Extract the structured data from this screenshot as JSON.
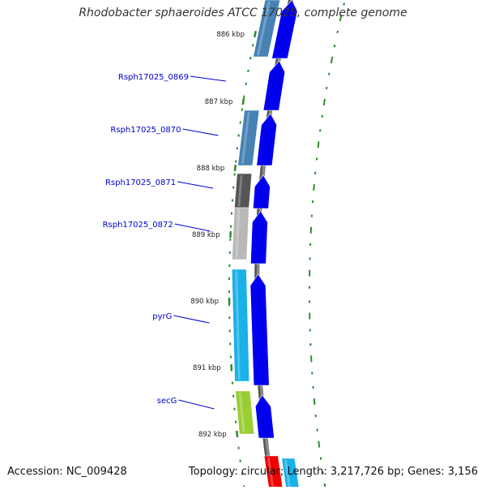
{
  "title": "Rhodobacter sphaeroides ATCC 17025, complete genome",
  "footer": {
    "accession": "Accession: NC_009428",
    "stats": "Topology: circular; Length: 3,217,726 bp; Genes: 3,156"
  },
  "colors": {
    "backbone": "#8c8c8c",
    "tick": "#2e8b2e",
    "label": "#0000cc",
    "forward_arrow": "#0000ee"
  },
  "ticks": [
    {
      "label": "886 kbp"
    },
    {
      "label": "887 kbp"
    },
    {
      "label": "888 kbp"
    },
    {
      "label": "889 kbp"
    },
    {
      "label": "890 kbp"
    },
    {
      "label": "891 kbp"
    },
    {
      "label": "892 kbp"
    }
  ],
  "genes": [
    {
      "name": "Rsph17025_0869",
      "color": "#4682b4"
    },
    {
      "name": "Rsph17025_0870",
      "color": "#4682b4"
    },
    {
      "name": "Rsph17025_0871",
      "color": "#555555"
    },
    {
      "name": "Rsph17025_0872",
      "color": "#b8b8b8"
    },
    {
      "name": "pyrG",
      "color": "#1ab0e8"
    },
    {
      "name": "secG",
      "color": "#9acd32"
    }
  ],
  "partial_genes": [
    {
      "color": "#4682b4"
    },
    {
      "color": "#ee0000"
    },
    {
      "color": "#1ab0e8"
    }
  ]
}
